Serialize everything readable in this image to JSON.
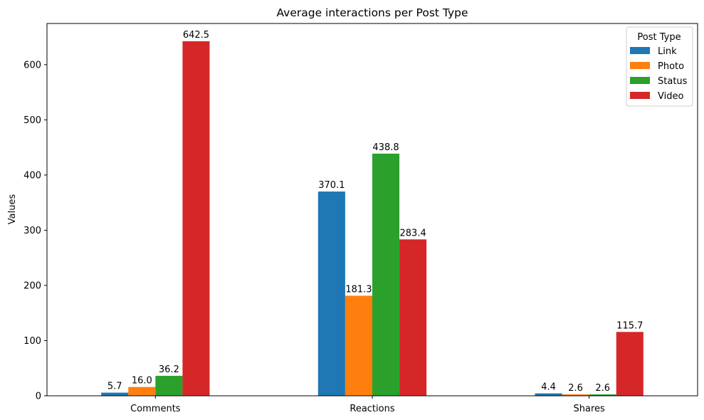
{
  "chart_data": {
    "type": "bar",
    "title": "Average interactions per Post Type",
    "xlabel": "",
    "ylabel": "Values",
    "categories": [
      "Comments",
      "Reactions",
      "Shares"
    ],
    "series": [
      {
        "name": "Link",
        "color": "#1f77b4",
        "values": [
          5.7,
          370.1,
          4.4
        ],
        "labels": [
          "5.7",
          "370.1",
          "4.4"
        ]
      },
      {
        "name": "Photo",
        "color": "#ff7f0e",
        "values": [
          16.0,
          181.3,
          2.6
        ],
        "labels": [
          "16.0",
          "181.3",
          "2.6"
        ]
      },
      {
        "name": "Status",
        "color": "#2ca02c",
        "values": [
          36.2,
          438.8,
          2.6
        ],
        "labels": [
          "36.2",
          "438.8",
          "2.6"
        ]
      },
      {
        "name": "Video",
        "color": "#d62728",
        "values": [
          642.5,
          283.4,
          115.7
        ],
        "labels": [
          "642.5",
          "283.4",
          "115.7"
        ]
      }
    ],
    "ylim": [
      0,
      674.6
    ],
    "yticks": [
      0,
      100,
      200,
      300,
      400,
      500,
      600
    ],
    "grid": false,
    "legend": {
      "title": "Post Type",
      "position": "top-right"
    }
  }
}
